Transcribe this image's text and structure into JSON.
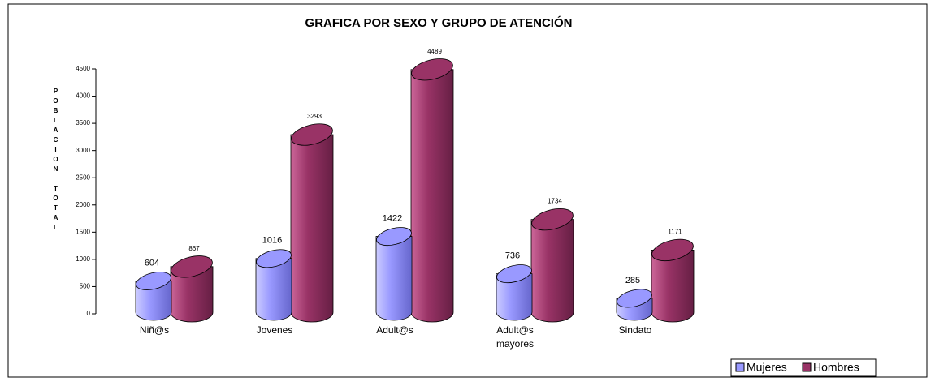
{
  "chart_data": {
    "type": "bar",
    "title": "GRAFICA POR SEXO Y GRUPO DE ATENCIÓN",
    "y_label": "POBLACION TOTAL",
    "categories": [
      "Niñ@s",
      "Jovenes",
      "Adult@s",
      "Adult@s mayores",
      "Sindato"
    ],
    "series": [
      {
        "name": "Mujeres",
        "color": "#9999ff",
        "values": [
          604,
          1016,
          1422,
          736,
          285
        ]
      },
      {
        "name": "Hombres",
        "color": "#993366",
        "values": [
          867,
          3293,
          4489,
          1734,
          1171
        ]
      }
    ],
    "ylim": [
      0,
      4500
    ],
    "yticks": [
      0,
      500,
      1000,
      1500,
      2000,
      2500,
      3000,
      3500,
      4000,
      4500
    ],
    "legend": "bottom-right"
  }
}
